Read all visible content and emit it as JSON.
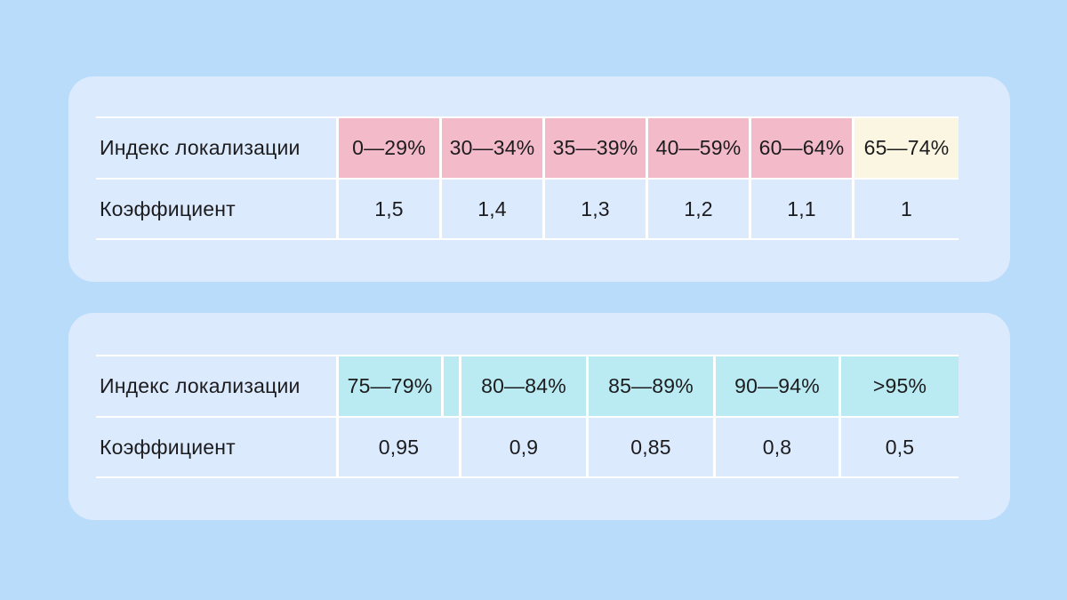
{
  "colors": {
    "page_bg": "#B9DCFB",
    "card_bg": "#DCEAFD",
    "grid_line": "#FFFFFF",
    "text": "#1C1C1E",
    "pink": "#F3BACA",
    "cream": "#FAF6E1",
    "cyan": "#BAEAF2"
  },
  "tables": [
    {
      "index_label": "Индекс локализации",
      "coefficient_label": "Коэффициент",
      "ranges": [
        "0—29%",
        "30—34%",
        "35—39%",
        "40—59%",
        "60—64%",
        "65—74%"
      ],
      "range_colors": [
        "pink",
        "pink",
        "pink",
        "pink",
        "pink",
        "cream"
      ],
      "coefficients": [
        "1,5",
        "1,4",
        "1,3",
        "1,2",
        "1,1",
        "1"
      ]
    },
    {
      "index_label": "Индекс локализации",
      "coefficient_label": "Коэффициент",
      "ranges": [
        "75—79%",
        "80—84%",
        "85—89%",
        "90—94%",
        ">95%"
      ],
      "range_colors": [
        "cyan",
        "cyan",
        "cyan",
        "cyan",
        "cyan"
      ],
      "coefficients": [
        "0,95",
        "0,9",
        "0,85",
        "0,8",
        "0,5"
      ]
    }
  ],
  "chart_data": [
    {
      "type": "table",
      "rows": [
        [
          "Индекс локализации",
          "0—29%",
          "30—34%",
          "35—39%",
          "40—59%",
          "60—64%",
          "65—74%"
        ],
        [
          "Коэффициент",
          "1,5",
          "1,4",
          "1,3",
          "1,2",
          "1,1",
          "1"
        ]
      ],
      "highlight": "ranges 0—64% pink, 65—74% cream"
    },
    {
      "type": "table",
      "rows": [
        [
          "Индекс локализации",
          "75—79%",
          "80—84%",
          "85—89%",
          "90—94%",
          ">95%"
        ],
        [
          "Коэффициент",
          "0,95",
          "0,9",
          "0,85",
          "0,8",
          "0,5"
        ]
      ],
      "highlight": "all ranges cyan"
    }
  ]
}
